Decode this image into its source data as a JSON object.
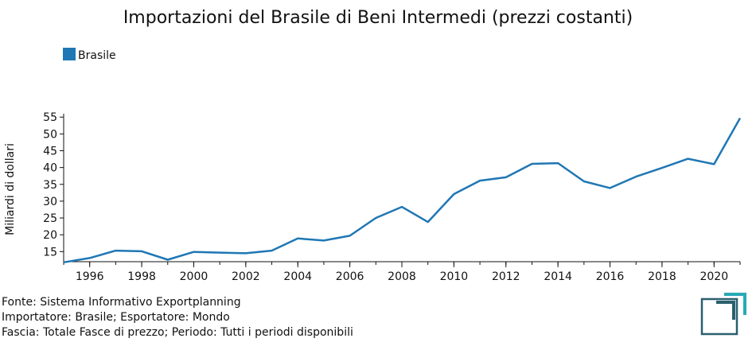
{
  "colors": {
    "series": "#1f77b4",
    "axis": "#111111",
    "logo": "#2a5f6e",
    "logo_accent": "#2aa9b6"
  },
  "chart_data": {
    "type": "line",
    "title": "Importazioni del Brasile di Beni Intermedi (prezzi costanti)",
    "xlabel": "",
    "ylabel": "Miliardi di dollari",
    "legend_position": "top-left",
    "grid": false,
    "xlim": [
      1995,
      2021
    ],
    "ylim": [
      12,
      56
    ],
    "x_ticks": [
      1996,
      1998,
      2000,
      2002,
      2004,
      2006,
      2008,
      2010,
      2012,
      2014,
      2016,
      2018,
      2020
    ],
    "y_ticks": [
      15,
      20,
      25,
      30,
      35,
      40,
      45,
      50,
      55
    ],
    "series": [
      {
        "name": "Brasile",
        "x": [
          1995,
          1996,
          1997,
          1998,
          1999,
          2000,
          2001,
          2002,
          2003,
          2004,
          2005,
          2006,
          2007,
          2008,
          2009,
          2010,
          2011,
          2012,
          2013,
          2014,
          2015,
          2016,
          2017,
          2018,
          2019,
          2020,
          2021
        ],
        "values": [
          11.8,
          13.1,
          15.3,
          15.1,
          12.6,
          14.9,
          14.7,
          14.5,
          15.3,
          18.9,
          18.3,
          19.7,
          25.0,
          28.3,
          23.8,
          32.1,
          36.1,
          37.1,
          41.1,
          41.3,
          35.9,
          33.9,
          37.3,
          39.9,
          42.6,
          41.0,
          54.7
        ]
      }
    ]
  },
  "footer": {
    "line1": "Fonte: Sistema Informativo Exportplanning",
    "line2": "Importatore: Brasile; Esportatore: Mondo",
    "line3": "Fascia: Totale Fasce di prezzo; Periodo: Tutti i periodi disponibili"
  }
}
